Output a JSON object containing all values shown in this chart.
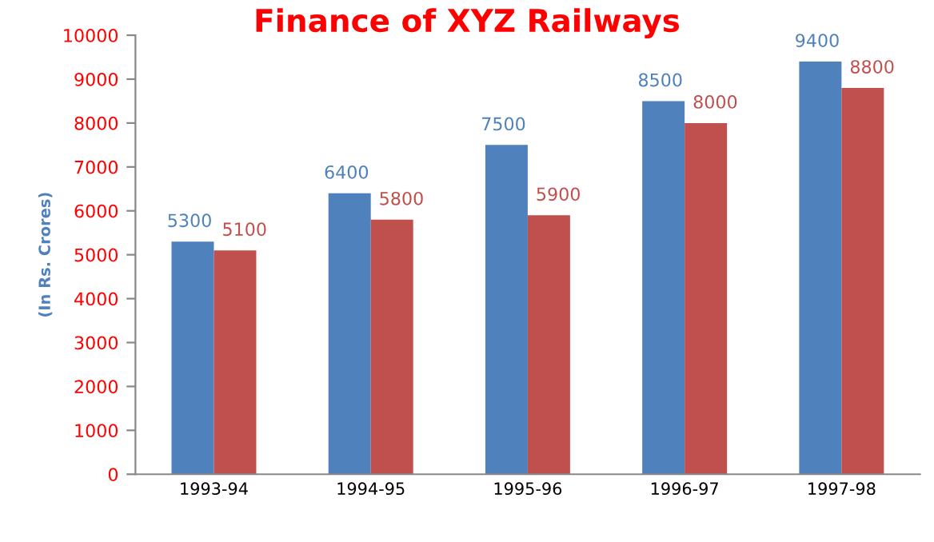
{
  "chart_data": {
    "type": "bar",
    "title": "Finance of XYZ Railways",
    "ylabel": "(In Rs. Crores)",
    "categories": [
      "1993-94",
      "1994-95",
      "1995-96",
      "1996-97",
      "1997-98"
    ],
    "series": [
      {
        "color": "#4f81bd",
        "values": [
          5300,
          6400,
          7500,
          8500,
          9400
        ]
      },
      {
        "color": "#c0504d",
        "values": [
          5100,
          5800,
          5900,
          8000,
          8800
        ]
      }
    ],
    "ylim": [
      0,
      10000
    ],
    "yticks": [
      0,
      1000,
      2000,
      3000,
      4000,
      5000,
      6000,
      7000,
      8000,
      9000,
      10000
    ],
    "data_labels": true
  }
}
